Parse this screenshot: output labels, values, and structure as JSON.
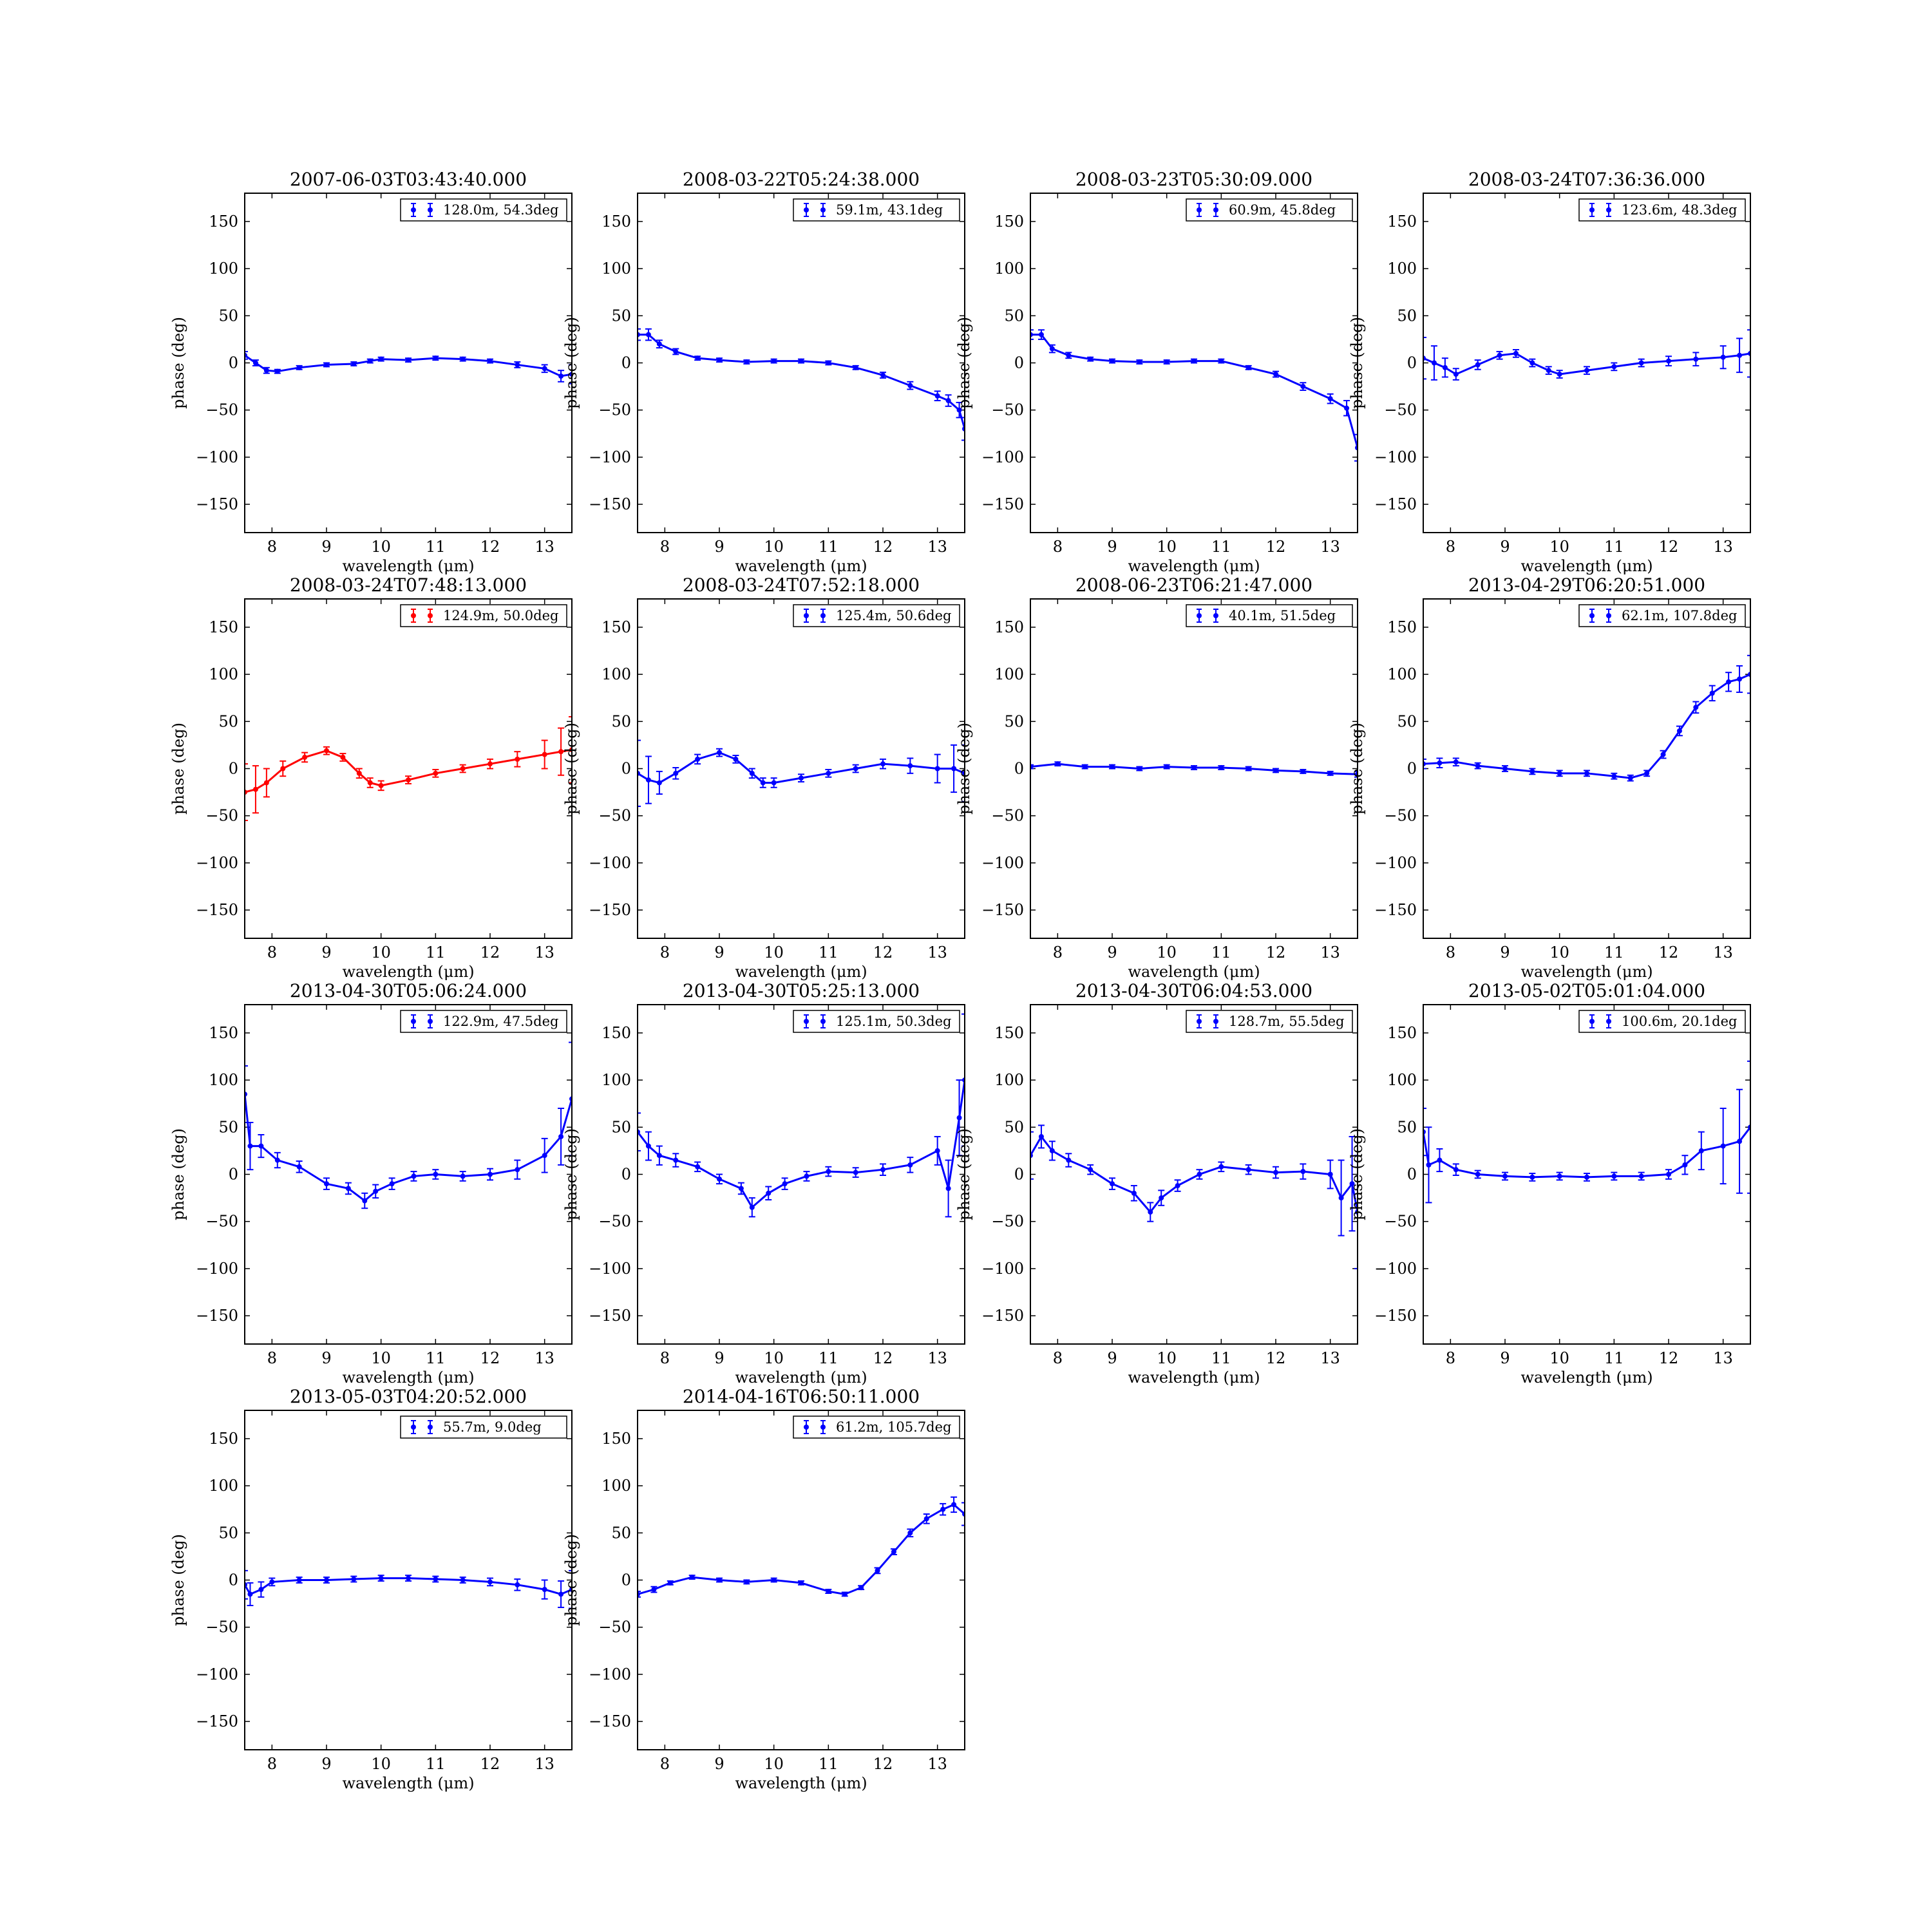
{
  "figure": {
    "xlabel": "wavelength (μm)",
    "ylabel": "phase (deg)",
    "xlim": [
      7.5,
      13.5
    ],
    "ylim": [
      -180,
      180
    ],
    "xticks": [
      8,
      9,
      10,
      11,
      12,
      13
    ],
    "yticks": [
      -150,
      -100,
      -50,
      0,
      50,
      100,
      150
    ]
  },
  "colors": {
    "blue": "#0000ff",
    "red": "#ff0000"
  },
  "chart_data": [
    {
      "type": "line",
      "title": "2007-06-03T03:43:40.000",
      "legend": "128.0m, 54.3deg",
      "color": "blue",
      "legend_placement": "top-right",
      "x": [
        7.5,
        7.7,
        7.9,
        8.1,
        8.5,
        9.0,
        9.5,
        9.8,
        10.0,
        10.5,
        11.0,
        11.5,
        12.0,
        12.5,
        13.0,
        13.3,
        13.5
      ],
      "y": [
        8,
        0,
        -8,
        -9,
        -5,
        -2,
        -1,
        2,
        4,
        3,
        5,
        4,
        2,
        -2,
        -6,
        -14,
        -12
      ],
      "err": [
        4,
        3,
        3,
        2,
        2,
        2,
        2,
        2,
        2,
        2,
        2,
        2,
        2,
        3,
        4,
        6,
        10
      ]
    },
    {
      "type": "line",
      "title": "2008-03-22T05:24:38.000",
      "legend": "59.1m, 43.1deg",
      "color": "blue",
      "legend_placement": "top-right",
      "x": [
        7.5,
        7.7,
        7.9,
        8.2,
        8.6,
        9.0,
        9.5,
        10.0,
        10.5,
        11.0,
        11.5,
        12.0,
        12.5,
        13.0,
        13.2,
        13.4,
        13.5
      ],
      "y": [
        30,
        30,
        20,
        12,
        5,
        3,
        1,
        2,
        2,
        0,
        -5,
        -13,
        -24,
        -35,
        -40,
        -50,
        -70
      ],
      "err": [
        6,
        6,
        4,
        3,
        2,
        2,
        2,
        2,
        2,
        2,
        2,
        3,
        4,
        5,
        6,
        8,
        12
      ]
    },
    {
      "type": "line",
      "title": "2008-03-23T05:30:09.000",
      "legend": "60.9m, 45.8deg",
      "color": "blue",
      "legend_placement": "top-right",
      "x": [
        7.5,
        7.7,
        7.9,
        8.2,
        8.6,
        9.0,
        9.5,
        10.0,
        10.5,
        11.0,
        11.5,
        12.0,
        12.5,
        13.0,
        13.3,
        13.5
      ],
      "y": [
        30,
        30,
        15,
        8,
        4,
        2,
        1,
        1,
        2,
        2,
        -5,
        -12,
        -25,
        -38,
        -48,
        -90
      ],
      "err": [
        5,
        5,
        4,
        3,
        2,
        2,
        2,
        2,
        2,
        2,
        2,
        3,
        4,
        5,
        8,
        14
      ]
    },
    {
      "type": "line",
      "title": "2008-03-24T07:36:36.000",
      "legend": "123.6m, 48.3deg",
      "color": "blue",
      "legend_placement": "top-right",
      "x": [
        7.5,
        7.7,
        7.9,
        8.1,
        8.5,
        8.9,
        9.2,
        9.5,
        9.8,
        10.0,
        10.5,
        11.0,
        11.5,
        12.0,
        12.5,
        13.0,
        13.3,
        13.5
      ],
      "y": [
        5,
        0,
        -5,
        -12,
        -2,
        8,
        10,
        0,
        -8,
        -12,
        -8,
        -4,
        0,
        2,
        4,
        6,
        8,
        10
      ],
      "err": [
        22,
        18,
        10,
        6,
        5,
        4,
        4,
        4,
        4,
        4,
        4,
        4,
        4,
        5,
        7,
        12,
        18,
        25
      ]
    },
    {
      "type": "line",
      "title": "2008-03-24T07:48:13.000",
      "legend": "124.9m, 50.0deg",
      "color": "red",
      "legend_placement": "top-right",
      "x": [
        7.5,
        7.7,
        7.9,
        8.2,
        8.6,
        9.0,
        9.3,
        9.6,
        9.8,
        10.0,
        10.5,
        11.0,
        11.5,
        12.0,
        12.5,
        13.0,
        13.3,
        13.5
      ],
      "y": [
        -25,
        -22,
        -15,
        0,
        12,
        19,
        12,
        -5,
        -15,
        -18,
        -12,
        -5,
        0,
        5,
        10,
        15,
        18,
        20
      ],
      "err": [
        30,
        25,
        15,
        8,
        5,
        4,
        4,
        5,
        5,
        5,
        4,
        4,
        4,
        5,
        8,
        15,
        25,
        35
      ]
    },
    {
      "type": "line",
      "title": "2008-03-24T07:52:18.000",
      "legend": "125.4m, 50.6deg",
      "color": "blue",
      "legend_placement": "top-right",
      "x": [
        7.5,
        7.7,
        7.9,
        8.2,
        8.6,
        9.0,
        9.3,
        9.6,
        9.8,
        10.0,
        10.5,
        11.0,
        11.5,
        12.0,
        12.5,
        13.0,
        13.3,
        13.5
      ],
      "y": [
        -5,
        -12,
        -15,
        -5,
        10,
        17,
        10,
        -5,
        -15,
        -15,
        -10,
        -5,
        0,
        5,
        3,
        0,
        0,
        -5
      ],
      "err": [
        35,
        25,
        12,
        6,
        5,
        4,
        4,
        5,
        5,
        5,
        4,
        4,
        4,
        5,
        8,
        15,
        25,
        30
      ]
    },
    {
      "type": "line",
      "title": "2008-06-23T06:21:47.000",
      "legend": "40.1m, 51.5deg",
      "color": "blue",
      "legend_placement": "top-right",
      "x": [
        7.5,
        8.0,
        8.5,
        9.0,
        9.5,
        10.0,
        10.5,
        11.0,
        11.5,
        12.0,
        12.5,
        13.0,
        13.5
      ],
      "y": [
        2,
        5,
        2,
        2,
        0,
        2,
        1,
        1,
        0,
        -2,
        -3,
        -5,
        -6
      ],
      "err": [
        2,
        2,
        2,
        2,
        2,
        2,
        2,
        2,
        2,
        2,
        2,
        2,
        3
      ]
    },
    {
      "type": "line",
      "title": "2013-04-29T06:20:51.000",
      "legend": "62.1m, 107.8deg",
      "color": "blue",
      "legend_placement": "top-right",
      "x": [
        7.5,
        7.8,
        8.1,
        8.5,
        9.0,
        9.5,
        10.0,
        10.5,
        11.0,
        11.3,
        11.6,
        11.9,
        12.2,
        12.5,
        12.8,
        13.1,
        13.3,
        13.5
      ],
      "y": [
        5,
        6,
        7,
        3,
        0,
        -3,
        -5,
        -5,
        -8,
        -10,
        -5,
        15,
        40,
        65,
        80,
        92,
        95,
        100
      ],
      "err": [
        5,
        5,
        4,
        3,
        3,
        3,
        3,
        3,
        3,
        3,
        3,
        4,
        5,
        6,
        8,
        10,
        14,
        20
      ]
    },
    {
      "type": "line",
      "title": "2013-04-30T05:06:24.000",
      "legend": "122.9m, 47.5deg",
      "color": "blue",
      "legend_placement": "top-right",
      "x": [
        7.5,
        7.6,
        7.8,
        8.1,
        8.5,
        9.0,
        9.4,
        9.7,
        9.9,
        10.2,
        10.6,
        11.0,
        11.5,
        12.0,
        12.5,
        13.0,
        13.3,
        13.5
      ],
      "y": [
        85,
        30,
        30,
        15,
        8,
        -10,
        -15,
        -28,
        -18,
        -10,
        -2,
        0,
        -2,
        0,
        5,
        20,
        40,
        80
      ],
      "err": [
        30,
        25,
        12,
        8,
        6,
        6,
        6,
        8,
        7,
        6,
        5,
        5,
        5,
        6,
        10,
        18,
        30,
        60
      ]
    },
    {
      "type": "line",
      "title": "2013-04-30T05:25:13.000",
      "legend": "125.1m, 50.3deg",
      "color": "blue",
      "legend_placement": "top-right",
      "x": [
        7.5,
        7.7,
        7.9,
        8.2,
        8.6,
        9.0,
        9.4,
        9.6,
        9.9,
        10.2,
        10.6,
        11.0,
        11.5,
        12.0,
        12.5,
        13.0,
        13.2,
        13.4,
        13.5
      ],
      "y": [
        45,
        30,
        20,
        15,
        8,
        -5,
        -15,
        -35,
        -20,
        -10,
        -2,
        3,
        2,
        5,
        10,
        25,
        -15,
        60,
        100
      ],
      "err": [
        20,
        15,
        10,
        7,
        5,
        5,
        6,
        10,
        7,
        6,
        5,
        5,
        5,
        6,
        8,
        15,
        30,
        40,
        70
      ]
    },
    {
      "type": "line",
      "title": "2013-04-30T06:04:53.000",
      "legend": "128.7m, 55.5deg",
      "color": "blue",
      "legend_placement": "top-right",
      "x": [
        7.5,
        7.7,
        7.9,
        8.2,
        8.6,
        9.0,
        9.4,
        9.7,
        9.9,
        10.2,
        10.6,
        11.0,
        11.5,
        12.0,
        12.5,
        13.0,
        13.2,
        13.4,
        13.5
      ],
      "y": [
        20,
        40,
        25,
        15,
        5,
        -10,
        -20,
        -40,
        -25,
        -12,
        0,
        8,
        5,
        2,
        3,
        0,
        -25,
        -10,
        -40
      ],
      "err": [
        25,
        12,
        10,
        7,
        5,
        6,
        8,
        10,
        8,
        6,
        5,
        5,
        5,
        6,
        8,
        15,
        40,
        50,
        60
      ]
    },
    {
      "type": "line",
      "title": "2013-05-02T05:01:04.000",
      "legend": "100.6m, 20.1deg",
      "color": "blue",
      "legend_placement": "top-right",
      "x": [
        7.5,
        7.6,
        7.8,
        8.1,
        8.5,
        9.0,
        9.5,
        10.0,
        10.5,
        11.0,
        11.5,
        12.0,
        12.3,
        12.6,
        13.0,
        13.3,
        13.5
      ],
      "y": [
        45,
        10,
        15,
        5,
        0,
        -2,
        -3,
        -2,
        -3,
        -2,
        -2,
        0,
        10,
        25,
        30,
        35,
        50
      ],
      "err": [
        25,
        40,
        12,
        6,
        4,
        4,
        4,
        4,
        4,
        4,
        4,
        5,
        10,
        20,
        40,
        55,
        70
      ]
    },
    {
      "type": "line",
      "title": "2013-05-03T04:20:52.000",
      "legend": "55.7m, 9.0deg",
      "color": "blue",
      "legend_placement": "top-right",
      "x": [
        7.5,
        7.6,
        7.8,
        8.0,
        8.5,
        9.0,
        9.5,
        10.0,
        10.5,
        11.0,
        11.5,
        12.0,
        12.5,
        13.0,
        13.3,
        13.5
      ],
      "y": [
        -5,
        -15,
        -10,
        -2,
        0,
        0,
        1,
        2,
        2,
        1,
        0,
        -2,
        -5,
        -10,
        -15,
        -10
      ],
      "err": [
        15,
        12,
        8,
        4,
        3,
        3,
        3,
        3,
        3,
        3,
        3,
        4,
        6,
        10,
        14,
        20
      ]
    },
    {
      "type": "line",
      "title": "2014-04-16T06:50:11.000",
      "legend": "61.2m, 105.7deg",
      "color": "blue",
      "legend_placement": "top-right",
      "x": [
        7.5,
        7.8,
        8.1,
        8.5,
        9.0,
        9.5,
        10.0,
        10.5,
        11.0,
        11.3,
        11.6,
        11.9,
        12.2,
        12.5,
        12.8,
        13.1,
        13.3,
        13.5
      ],
      "y": [
        -15,
        -10,
        -3,
        3,
        0,
        -2,
        0,
        -3,
        -12,
        -15,
        -8,
        10,
        30,
        50,
        65,
        75,
        80,
        70
      ],
      "err": [
        3,
        3,
        2,
        2,
        2,
        2,
        2,
        2,
        2,
        2,
        2,
        3,
        3,
        4,
        5,
        6,
        8,
        12
      ]
    }
  ]
}
